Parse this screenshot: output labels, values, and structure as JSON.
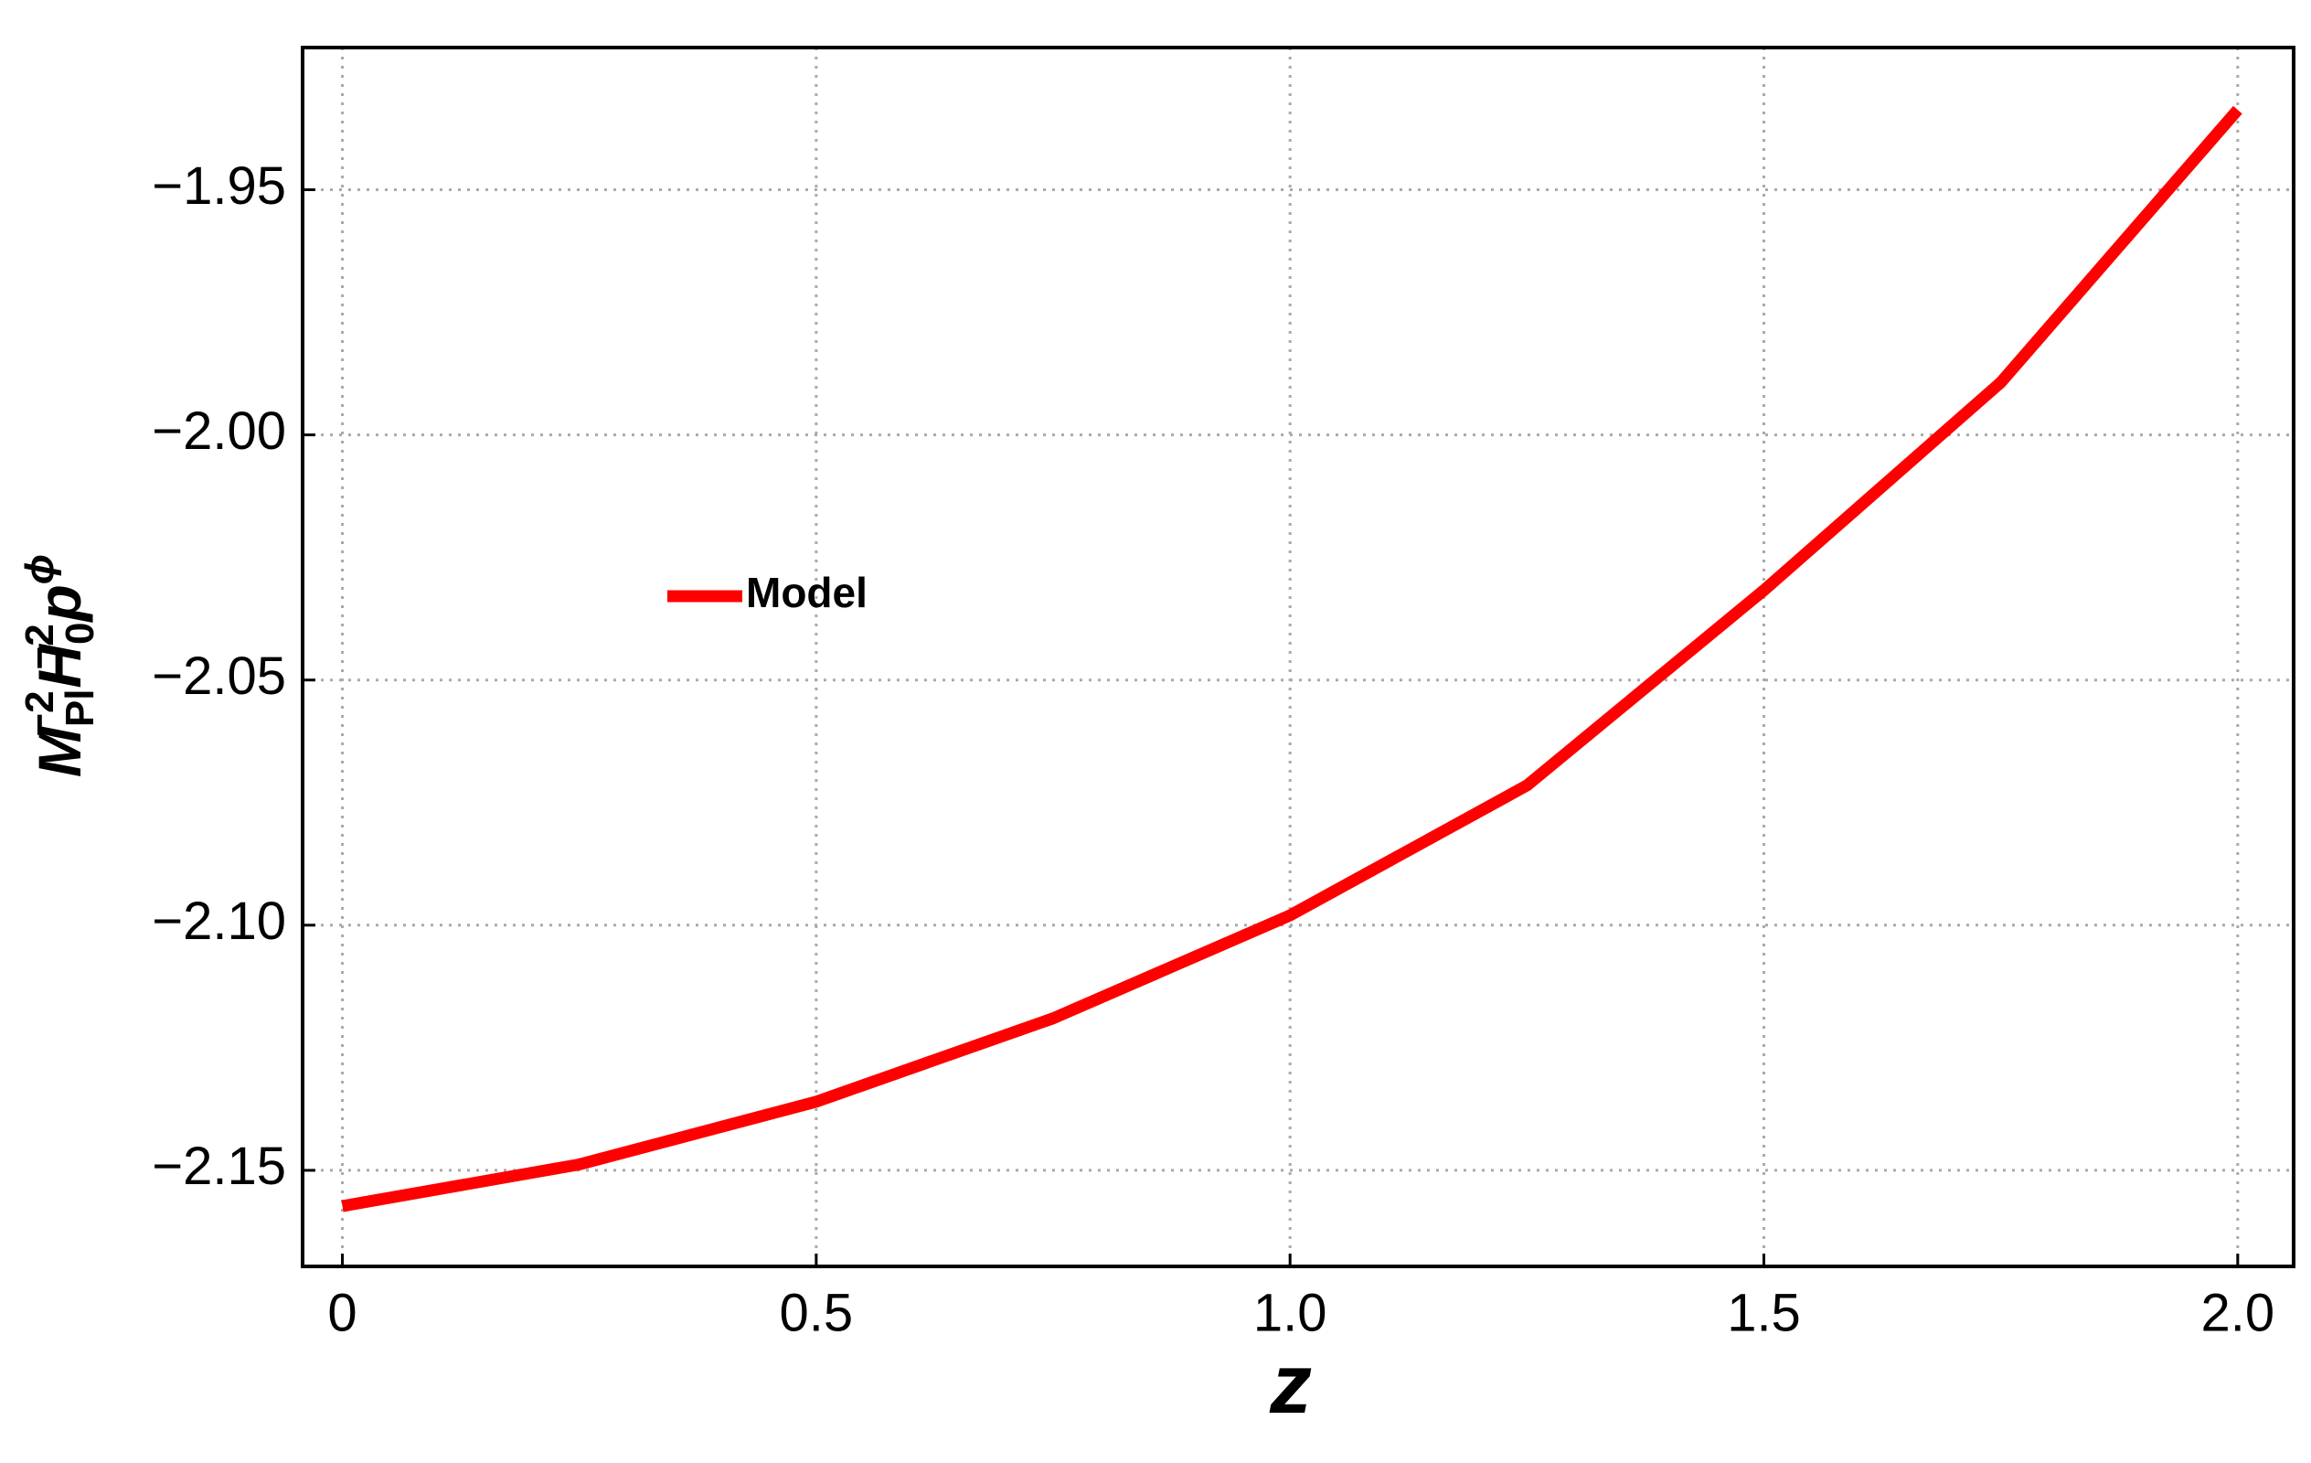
{
  "chart_data": {
    "type": "line",
    "xlabel": "z",
    "ylabel": [
      {
        "base": "M",
        "sub": "Pl",
        "sup": "−2"
      },
      {
        "base": "H",
        "sub": "0",
        "sup": "−2"
      },
      {
        "base": "p",
        "sup": "ϕ"
      }
    ],
    "x": [
      0,
      0.25,
      0.5,
      0.75,
      1.0,
      1.25,
      1.5,
      1.75,
      2.0
    ],
    "series": [
      {
        "name": "Model",
        "color": "#ff0000",
        "values": [
          -2.1573,
          -2.1488,
          -2.136,
          -2.119,
          -2.098,
          -2.0715,
          -2.0317,
          -1.9893,
          -1.9337
        ]
      }
    ],
    "xlim": [
      -0.042,
      2.059
    ],
    "ylim": [
      -2.1696,
      -1.921
    ],
    "xticks": [
      0,
      0.5,
      {
        "value": 1,
        "label": "1.0"
      },
      1.5,
      {
        "value": 2,
        "label": "2.0"
      }
    ],
    "yticks": [
      {
        "value": -2.15,
        "label": "−2.15"
      },
      {
        "value": -2.1,
        "label": "−2.10"
      },
      {
        "value": -2.05,
        "label": "−2.05"
      },
      {
        "value": -2,
        "label": "−2.00"
      },
      {
        "value": -1.95,
        "label": "−1.95"
      }
    ],
    "grid": true
  }
}
